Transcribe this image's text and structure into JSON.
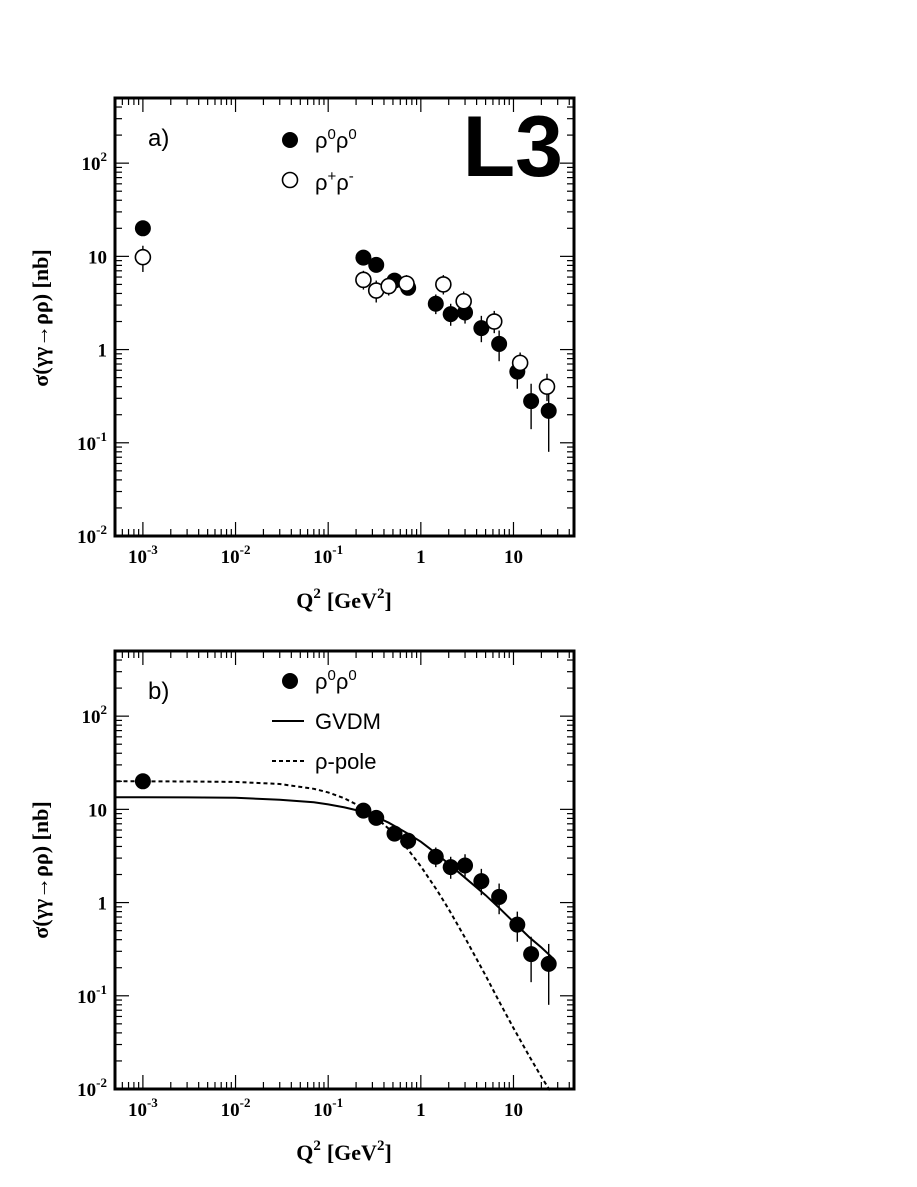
{
  "chart_data": [
    {
      "type": "scatter",
      "panel_label": "a)",
      "logo": "L3",
      "xlabel": "Q",
      "xlabel_sup": "2",
      "xlabel_rest": "[GeV",
      "xlabel_rest_sup": "2",
      "xlabel_close": "]",
      "ylabel": "σ(γγ→ρρ) [nb]",
      "xscale": "log",
      "yscale": "log",
      "xlim": [
        0.0005,
        45
      ],
      "ylim": [
        0.01,
        500
      ],
      "x_ticks": [
        {
          "value": 0.001,
          "base": "10",
          "exp": "-3"
        },
        {
          "value": 0.01,
          "base": "10",
          "exp": "-2"
        },
        {
          "value": 0.1,
          "base": "10",
          "exp": "-1"
        },
        {
          "value": 1,
          "base": "1",
          "exp": ""
        },
        {
          "value": 10,
          "base": "10",
          "exp": ""
        }
      ],
      "y_ticks": [
        {
          "value": 0.01,
          "base": "10",
          "exp": "-2"
        },
        {
          "value": 0.1,
          "base": "10",
          "exp": "-1"
        },
        {
          "value": 1,
          "base": "1",
          "exp": ""
        },
        {
          "value": 10,
          "base": "10",
          "exp": ""
        },
        {
          "value": 100,
          "base": "10",
          "exp": "2"
        }
      ],
      "legend": [
        {
          "marker": "filled",
          "label": "ρ",
          "sup1": "0",
          "label2": "ρ",
          "sup2": "0"
        },
        {
          "marker": "open",
          "label": "ρ",
          "sup1": "+",
          "label2": "ρ",
          "sup2": "-"
        }
      ],
      "legend_position": "top-center",
      "series": [
        {
          "marker": "filled",
          "points": [
            {
              "x": 0.001,
              "y": 20,
              "lo": 20,
              "hi": 20
            },
            {
              "x": 0.24,
              "y": 9.7,
              "lo": 8.5,
              "hi": 11
            },
            {
              "x": 0.33,
              "y": 8.1,
              "lo": 7,
              "hi": 9.3
            },
            {
              "x": 0.52,
              "y": 5.5,
              "lo": 4.6,
              "hi": 6.5
            },
            {
              "x": 0.73,
              "y": 4.6,
              "lo": 3.8,
              "hi": 5.4
            },
            {
              "x": 1.45,
              "y": 3.1,
              "lo": 2.4,
              "hi": 3.9
            },
            {
              "x": 2.1,
              "y": 2.4,
              "lo": 1.8,
              "hi": 3.1
            },
            {
              "x": 3.0,
              "y": 2.5,
              "lo": 1.9,
              "hi": 3.3
            },
            {
              "x": 4.5,
              "y": 1.7,
              "lo": 1.2,
              "hi": 2.3
            },
            {
              "x": 7.0,
              "y": 1.15,
              "lo": 0.75,
              "hi": 1.6
            },
            {
              "x": 11.0,
              "y": 0.58,
              "lo": 0.38,
              "hi": 0.8
            },
            {
              "x": 15.5,
              "y": 0.28,
              "lo": 0.14,
              "hi": 0.43
            },
            {
              "x": 24.0,
              "y": 0.22,
              "lo": 0.08,
              "hi": 0.36
            }
          ]
        },
        {
          "marker": "open",
          "points": [
            {
              "x": 0.001,
              "y": 9.8,
              "lo": 6.8,
              "hi": 13
            },
            {
              "x": 0.24,
              "y": 5.6,
              "lo": 4.4,
              "hi": 7.0
            },
            {
              "x": 0.33,
              "y": 4.3,
              "lo": 3.2,
              "hi": 5.5
            },
            {
              "x": 0.45,
              "y": 4.8,
              "lo": 3.8,
              "hi": 6.0
            },
            {
              "x": 0.7,
              "y": 5.1,
              "lo": 4.1,
              "hi": 6.3
            },
            {
              "x": 1.75,
              "y": 5.0,
              "lo": 3.9,
              "hi": 6.3
            },
            {
              "x": 2.9,
              "y": 3.3,
              "lo": 2.5,
              "hi": 4.2
            },
            {
              "x": 6.2,
              "y": 2.0,
              "lo": 1.5,
              "hi": 2.6
            },
            {
              "x": 11.8,
              "y": 0.72,
              "lo": 0.55,
              "hi": 0.93
            },
            {
              "x": 23.0,
              "y": 0.4,
              "lo": 0.28,
              "hi": 0.55
            }
          ]
        }
      ]
    },
    {
      "type": "scatter",
      "panel_label": "b)",
      "xlabel": "Q",
      "xlabel_sup": "2",
      "xlabel_rest": "[GeV",
      "xlabel_rest_sup": "2",
      "xlabel_close": "]",
      "ylabel": "σ(γγ→ρρ) [nb]",
      "xscale": "log",
      "yscale": "log",
      "xlim": [
        0.0005,
        45
      ],
      "ylim": [
        0.01,
        500
      ],
      "x_ticks": [
        {
          "value": 0.001,
          "base": "10",
          "exp": "-3"
        },
        {
          "value": 0.01,
          "base": "10",
          "exp": "-2"
        },
        {
          "value": 0.1,
          "base": "10",
          "exp": "-1"
        },
        {
          "value": 1,
          "base": "1",
          "exp": ""
        },
        {
          "value": 10,
          "base": "10",
          "exp": ""
        }
      ],
      "y_ticks": [
        {
          "value": 0.01,
          "base": "10",
          "exp": "-2"
        },
        {
          "value": 0.1,
          "base": "10",
          "exp": "-1"
        },
        {
          "value": 1,
          "base": "1",
          "exp": ""
        },
        {
          "value": 10,
          "base": "10",
          "exp": ""
        },
        {
          "value": 100,
          "base": "10",
          "exp": "2"
        }
      ],
      "legend": [
        {
          "marker": "filled",
          "label": "ρ",
          "sup1": "0",
          "label2": "ρ",
          "sup2": "0"
        },
        {
          "marker": "solid-line",
          "label": "GVDM"
        },
        {
          "marker": "dashed-line",
          "label": "ρ-pole"
        }
      ],
      "legend_position": "top-center",
      "series": [
        {
          "marker": "filled",
          "points": [
            {
              "x": 0.001,
              "y": 20,
              "lo": 20,
              "hi": 20
            },
            {
              "x": 0.24,
              "y": 9.7,
              "lo": 8.5,
              "hi": 11
            },
            {
              "x": 0.33,
              "y": 8.1,
              "lo": 7,
              "hi": 9.3
            },
            {
              "x": 0.52,
              "y": 5.5,
              "lo": 4.6,
              "hi": 6.5
            },
            {
              "x": 0.73,
              "y": 4.6,
              "lo": 3.8,
              "hi": 5.4
            },
            {
              "x": 1.45,
              "y": 3.1,
              "lo": 2.4,
              "hi": 3.9
            },
            {
              "x": 2.1,
              "y": 2.4,
              "lo": 1.8,
              "hi": 3.1
            },
            {
              "x": 3.0,
              "y": 2.5,
              "lo": 1.9,
              "hi": 3.3
            },
            {
              "x": 4.5,
              "y": 1.7,
              "lo": 1.2,
              "hi": 2.3
            },
            {
              "x": 7.0,
              "y": 1.15,
              "lo": 0.75,
              "hi": 1.6
            },
            {
              "x": 11.0,
              "y": 0.58,
              "lo": 0.38,
              "hi": 0.8
            },
            {
              "x": 15.5,
              "y": 0.28,
              "lo": 0.14,
              "hi": 0.43
            },
            {
              "x": 24.0,
              "y": 0.22,
              "lo": 0.08,
              "hi": 0.36
            }
          ]
        }
      ],
      "curves": [
        {
          "style": "solid",
          "points": [
            [
              0.0005,
              13.5
            ],
            [
              0.001,
              13.5
            ],
            [
              0.003,
              13.45
            ],
            [
              0.01,
              13.3
            ],
            [
              0.03,
              12.7
            ],
            [
              0.07,
              11.9
            ],
            [
              0.1,
              11.3
            ],
            [
              0.15,
              10.5
            ],
            [
              0.22,
              9.6
            ],
            [
              0.3,
              8.7
            ],
            [
              0.45,
              7.2
            ],
            [
              0.7,
              5.6
            ],
            [
              1.0,
              4.5
            ],
            [
              1.5,
              3.3
            ],
            [
              2.0,
              2.6
            ],
            [
              3.0,
              1.85
            ],
            [
              5.0,
              1.2
            ],
            [
              7.0,
              0.88
            ],
            [
              10.0,
              0.62
            ],
            [
              15.0,
              0.42
            ],
            [
              20.0,
              0.33
            ],
            [
              27.0,
              0.25
            ]
          ]
        },
        {
          "style": "dashed",
          "points": [
            [
              0.0005,
              20
            ],
            [
              0.001,
              20
            ],
            [
              0.003,
              19.9
            ],
            [
              0.01,
              19.7
            ],
            [
              0.03,
              18.7
            ],
            [
              0.07,
              16.6
            ],
            [
              0.1,
              15.2
            ],
            [
              0.15,
              13.1
            ],
            [
              0.22,
              10.8
            ],
            [
              0.3,
              8.8
            ],
            [
              0.45,
              6.2
            ],
            [
              0.7,
              3.9
            ],
            [
              1.0,
              2.45
            ],
            [
              1.5,
              1.35
            ],
            [
              2.0,
              0.85
            ],
            [
              3.0,
              0.42
            ],
            [
              5.0,
              0.165
            ],
            [
              7.0,
              0.087
            ],
            [
              10.0,
              0.045
            ],
            [
              15.0,
              0.022
            ],
            [
              20.0,
              0.0135
            ],
            [
              25.0,
              0.0095
            ]
          ]
        }
      ]
    }
  ]
}
